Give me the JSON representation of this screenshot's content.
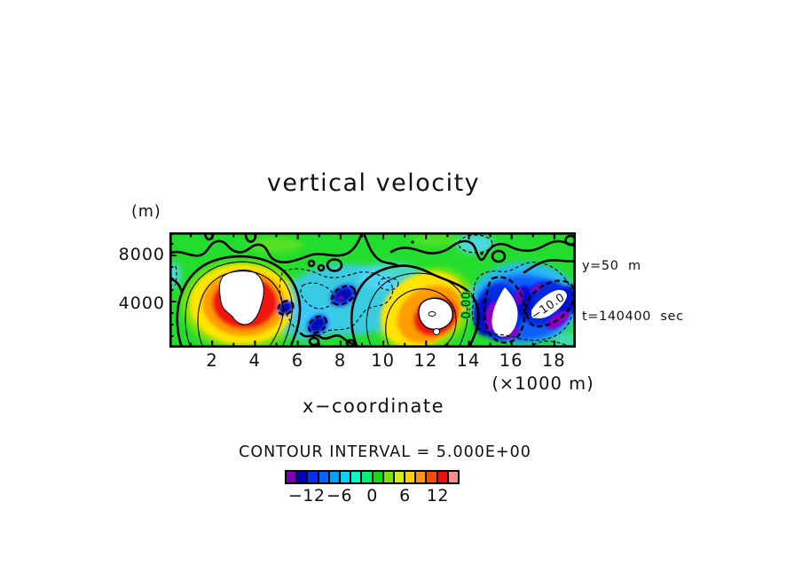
{
  "title": "vertical velocity",
  "y_axis": {
    "unit_label": "(m)",
    "tick_labels": [
      "8000",
      "4000"
    ]
  },
  "x_axis": {
    "ticks": [
      "2",
      "4",
      "6",
      "8",
      "10",
      "12",
      "14",
      "16",
      "18"
    ],
    "unit_label": "(×1000 m)",
    "label": "x−coordinate"
  },
  "annotations": {
    "line1": "y=50  m",
    "line2": "t=140400  sec"
  },
  "contour_note": "CONTOUR INTERVAL = 5.000E+00",
  "contour_labels": {
    "zero": "0.00",
    "neg10": "−10.0"
  },
  "colorbar": {
    "colors": [
      "#7a00b4",
      "#0000be",
      "#0030ff",
      "#0064ff",
      "#00a0ff",
      "#00d2ff",
      "#00ffc8",
      "#00f078",
      "#14dc14",
      "#78e600",
      "#d2f000",
      "#ffd200",
      "#ff9600",
      "#ff4b00",
      "#ee1010",
      "#ff8c8c"
    ],
    "tick_labels": [
      "−12",
      "−6",
      "0",
      "6",
      "12"
    ],
    "tick_values": [
      -12,
      -6,
      0,
      6,
      12
    ],
    "range": [
      -16,
      16
    ]
  },
  "chart_data": {
    "type": "heatmap",
    "subtype": "filled-contour-xz-slice",
    "title": "vertical velocity",
    "xlabel": "x−coordinate",
    "x_units": "×1000 m",
    "y_units": "m",
    "x_ticks": [
      2,
      4,
      6,
      8,
      10,
      12,
      14,
      16,
      18
    ],
    "y_ticks": [
      4000,
      8000
    ],
    "x_range_m": [
      0,
      19000
    ],
    "y_range_m": [
      0,
      10000
    ],
    "contour_interval": 5.0,
    "solid_contours": "zero and positive levels",
    "dashed_contours": "negative levels",
    "labeled_contours": [
      "0.00",
      "−10.0"
    ],
    "colorbar_tick_values": [
      -12,
      -6,
      0,
      6,
      12
    ],
    "colorbar_bin_width": 2,
    "colorbar_range": [
      -16,
      16
    ],
    "slice": {
      "y_m": 50,
      "t_sec": 140400
    },
    "features": [
      "strong updraft core, off-scale white (> +15), centered near x≈3000 m, y≈2000–7000 m, ringed yellow-orange-red",
      "second updraft core, off-scale white, near x≈13000 m, y≈2000–5000 m",
      "strong downdraft region (< −10, off-scale white cores with purple fringe) near x≈15500–18500 m, labeled −10.0",
      "weak downdraft pockets (≈ −5 to −10, dark blue cores with dashed outlines) between x≈6000–10000 m",
      "background weakly positive (green, 0–5) with meandering zero contours along the top of the domain"
    ]
  }
}
